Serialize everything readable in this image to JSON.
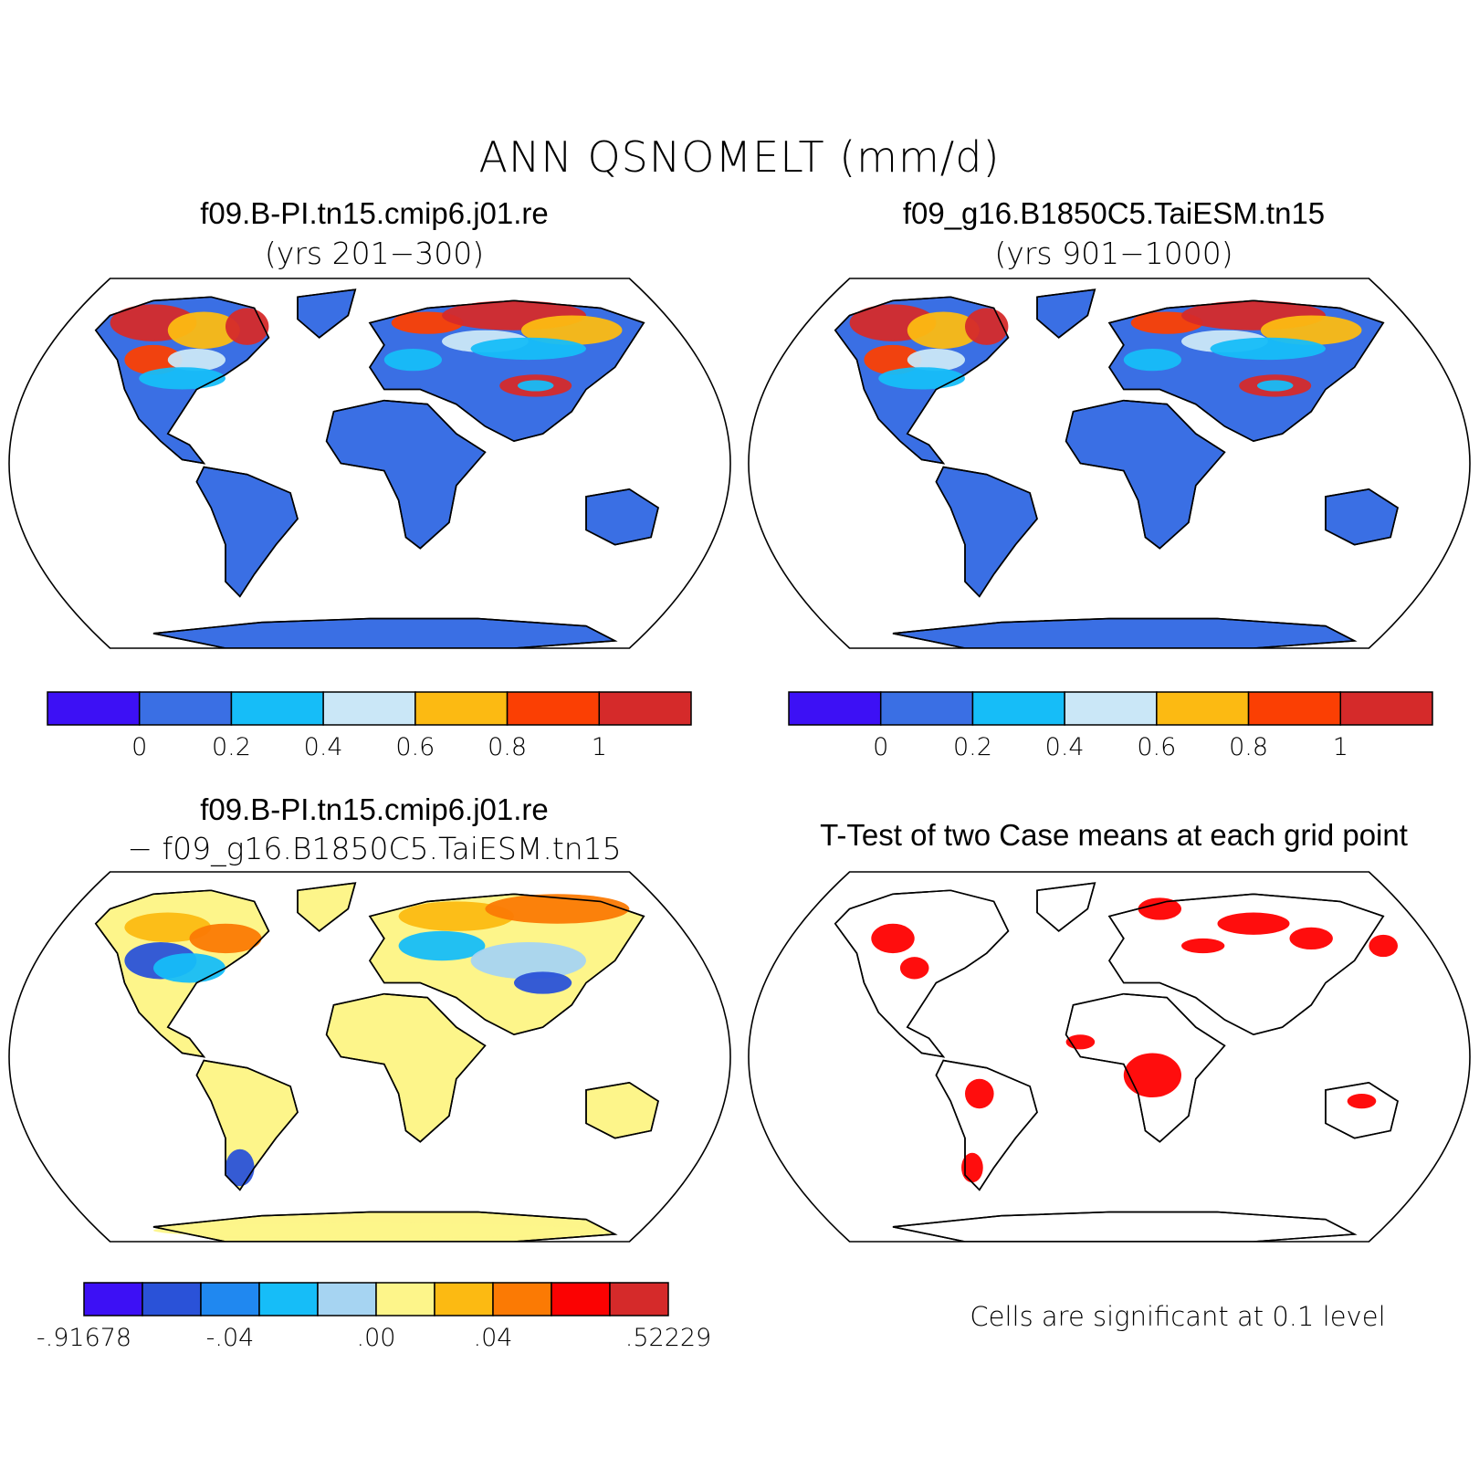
{
  "title": "ANN QSNOMELT (mm/d)",
  "panels": [
    {
      "id": "case1",
      "title": "f09.B-PI.tn15.cmip6.j01.re",
      "subtitle": "(yrs 201−300)"
    },
    {
      "id": "case2",
      "title": "f09_g16.B1850C5.TaiESM.tn15",
      "subtitle": "(yrs 901−1000)"
    },
    {
      "id": "diff",
      "title": "f09.B-PI.tn15.cmip6.j01.re",
      "subtitle": "− f09_g16.B1850C5.TaiESM.tn15"
    },
    {
      "id": "ttest",
      "title": "T-Test of two Case means at each grid point",
      "subtitle": ""
    }
  ],
  "colorbar_main": {
    "colors": [
      "#3d10f5",
      "#3a6fe4",
      "#16bdf8",
      "#cae7f7",
      "#fcba12",
      "#fb3f03",
      "#d52a2a"
    ],
    "labels": [
      "0",
      "0.2",
      "0.4",
      "0.6",
      "0.8",
      "1"
    ]
  },
  "colorbar_diff": {
    "colors": [
      "#3d10f5",
      "#2a52d8",
      "#2088f0",
      "#16bdf8",
      "#a6d4f2",
      "#fdf58a",
      "#fcba12",
      "#fb7a04",
      "#fb0202",
      "#d52a2a"
    ],
    "labels": [
      "-.91678",
      "-.04",
      ".00",
      ".04",
      ".52229"
    ],
    "label_positions": [
      0,
      0.25,
      0.5,
      0.7,
      1.0
    ]
  },
  "significance_note": "Cells are significant at 0.1 level",
  "colors": {
    "land_base": "#3a6fe4",
    "diff_base": "#fdf58a",
    "significance": "#ff0000",
    "outline": "#000000"
  }
}
